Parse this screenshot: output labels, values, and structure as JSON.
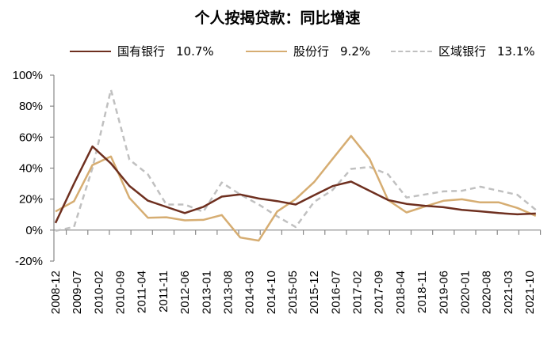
{
  "chart_data": {
    "type": "line",
    "title": "个人按揭贷款：同比增速",
    "x": [
      "2008-12",
      "2009-06",
      "2009-12",
      "2010-06",
      "2010-12",
      "2011-06",
      "2011-12",
      "2012-06",
      "2012-12",
      "2013-06",
      "2013-12",
      "2014-06",
      "2014-12",
      "2015-06",
      "2015-12",
      "2016-06",
      "2016-12",
      "2017-06",
      "2017-12",
      "2018-06",
      "2018-12",
      "2019-06",
      "2019-12",
      "2020-06",
      "2020-12",
      "2021-06",
      "2021-12"
    ],
    "x_tick_labels": [
      "2008-12",
      "2009-07",
      "2010-02",
      "2010-09",
      "2011-04",
      "2011-11",
      "2012-06",
      "2013-01",
      "2013-08",
      "2014-03",
      "2014-10",
      "2015-05",
      "2015-12",
      "2016-07",
      "2017-02",
      "2017-09",
      "2018-04",
      "2018-11",
      "2019-06",
      "2020-01",
      "2020-08",
      "2021-03",
      "2021-10"
    ],
    "y_tick_labels": [
      "100%",
      "80%",
      "60%",
      "40%",
      "20%",
      "0%",
      "-20%"
    ],
    "ylim": [
      -20,
      100
    ],
    "yunit": "%",
    "grid": false,
    "legend_placement": "top",
    "series": [
      {
        "name": "国有银行",
        "latest_label": "10.7%",
        "color": "#6e2f1f",
        "style": "solid",
        "values": [
          4.6,
          30,
          54,
          43,
          28.5,
          19,
          15,
          11,
          15,
          21.6,
          23,
          20.4,
          18.7,
          16.5,
          22.5,
          28.4,
          31.3,
          25.4,
          19.4,
          16.9,
          15.7,
          14.8,
          13.1,
          12.1,
          11,
          10.2,
          10.7
        ]
      },
      {
        "name": "股份行",
        "latest_label": "9.2%",
        "color": "#d6ad72",
        "style": "solid",
        "values": [
          12,
          18.6,
          42,
          47.5,
          20.8,
          8,
          8.3,
          6.3,
          6.6,
          9.7,
          -4.8,
          -6.8,
          12,
          20,
          31,
          46,
          60.8,
          46,
          19.4,
          11.4,
          15.3,
          18.9,
          19.9,
          17.9,
          17.9,
          14.3,
          9.2
        ]
      },
      {
        "name": "区域银行",
        "latest_label": "13.1%",
        "color": "#c0c0c0",
        "style": "dashed",
        "values": [
          -0.5,
          2,
          40,
          90.6,
          45.5,
          36,
          16.5,
          16.5,
          11.8,
          30.7,
          23,
          16.5,
          8.9,
          2,
          18.2,
          25.9,
          39.5,
          40.7,
          36,
          21,
          23,
          25,
          25.4,
          28,
          25.4,
          22.8,
          13.1
        ]
      }
    ]
  }
}
